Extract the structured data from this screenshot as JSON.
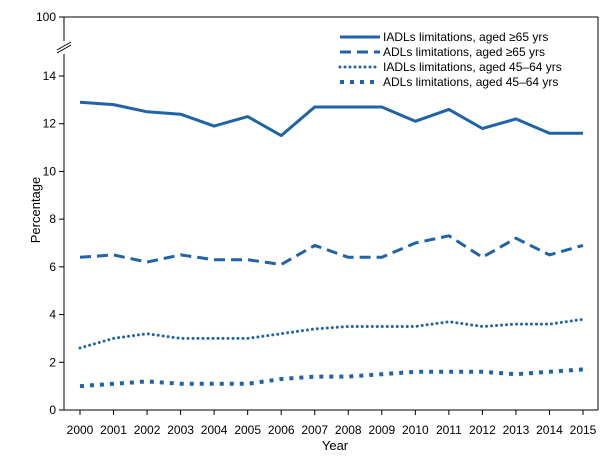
{
  "chart_data": {
    "type": "line",
    "title": "",
    "xlabel": "Year",
    "ylabel": "Percentage",
    "x": [
      2000,
      2001,
      2002,
      2003,
      2004,
      2005,
      2006,
      2007,
      2008,
      2009,
      2010,
      2011,
      2012,
      2013,
      2014,
      2015
    ],
    "y_ticks": [
      0,
      2,
      4,
      6,
      8,
      10,
      12,
      14
    ],
    "y_break_top_tick": 100,
    "ylim": [
      0,
      15
    ],
    "axis_break": true,
    "grid": false,
    "legend_position": "top-right",
    "colors": {
      "series": "#1f63a8",
      "axis": "#000000"
    },
    "series": [
      {
        "name": "IADLs limitations, aged ≥65 yrs",
        "style": "solid",
        "values": [
          12.9,
          12.8,
          12.5,
          12.4,
          11.9,
          12.3,
          11.5,
          12.7,
          12.7,
          12.7,
          12.1,
          12.6,
          11.8,
          12.2,
          11.6,
          11.6
        ]
      },
      {
        "name": "ADLs limitations, aged ≥65 yrs",
        "style": "dash",
        "values": [
          6.4,
          6.5,
          6.2,
          6.5,
          6.3,
          6.3,
          6.1,
          6.9,
          6.4,
          6.4,
          7.0,
          7.3,
          6.4,
          7.2,
          6.5,
          6.9
        ]
      },
      {
        "name": "IADLs limitations, aged 45–64 yrs",
        "style": "dot",
        "values": [
          2.6,
          3.0,
          3.2,
          3.0,
          3.0,
          3.0,
          3.2,
          3.4,
          3.5,
          3.5,
          3.5,
          3.7,
          3.5,
          3.6,
          3.6,
          3.8
        ]
      },
      {
        "name": "ADLs limitations, aged 45–64 yrs",
        "style": "square-dot",
        "values": [
          1.0,
          1.1,
          1.2,
          1.1,
          1.1,
          1.1,
          1.3,
          1.4,
          1.4,
          1.5,
          1.6,
          1.6,
          1.6,
          1.5,
          1.6,
          1.7
        ]
      }
    ]
  }
}
